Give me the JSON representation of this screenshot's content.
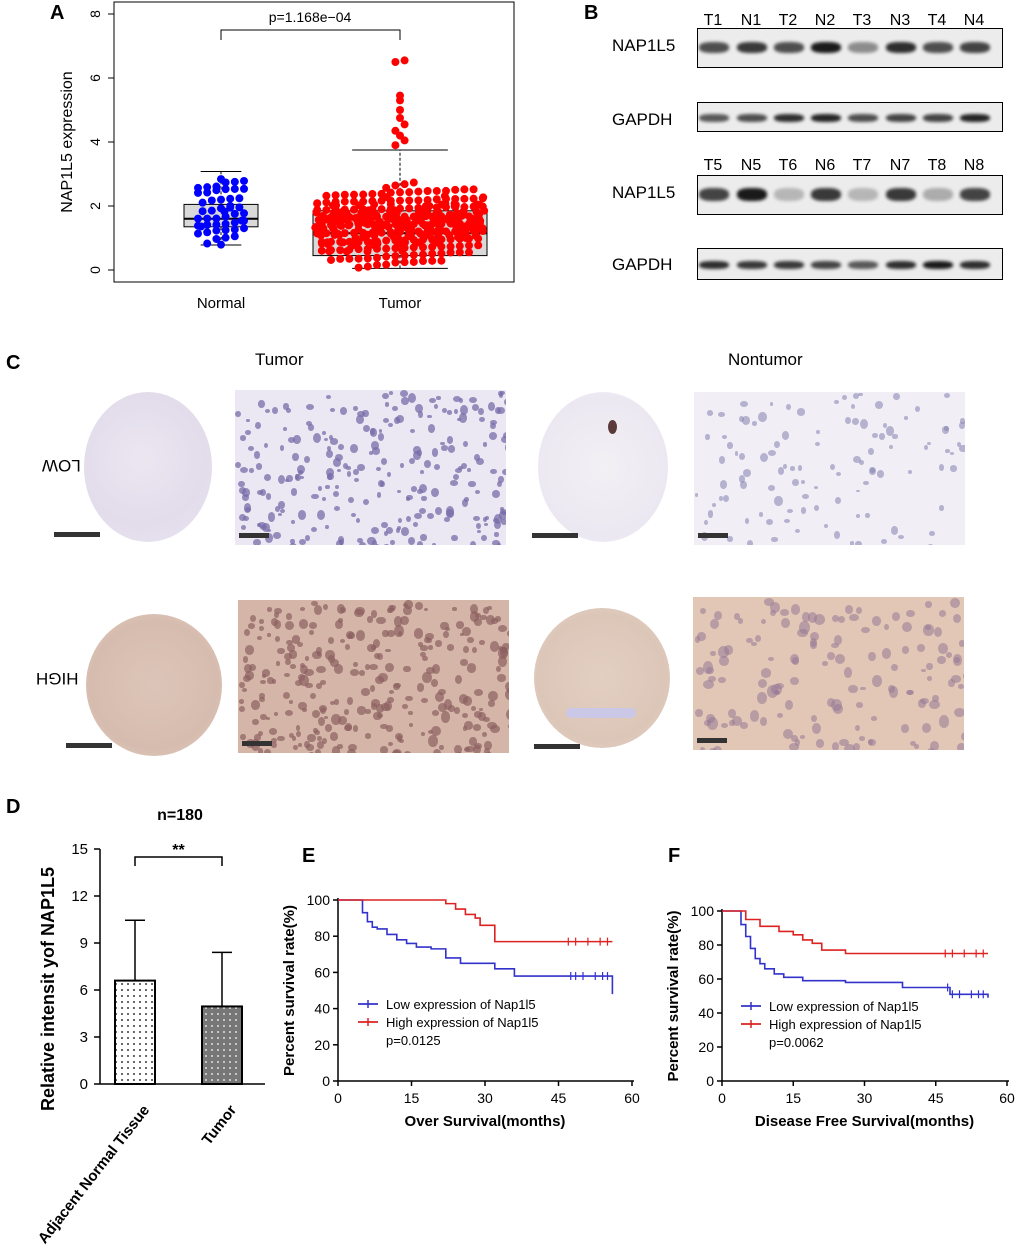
{
  "panels": {
    "a": "A",
    "b": "B",
    "c": "C",
    "d": "D",
    "e": "E",
    "f": "F"
  },
  "chart_data": [
    {
      "id": "A",
      "type": "box_swarm",
      "ylabel": "NAP1L5 expression",
      "ylim": [
        0,
        8
      ],
      "yticks": [
        "0",
        "2",
        "4",
        "6",
        "8"
      ],
      "categories": [
        "Normal",
        "Tumor"
      ],
      "annotation": "p=1.168e−04",
      "series": [
        {
          "name": "Normal",
          "color": "#0000ff",
          "q1": 1.35,
          "median": 1.6,
          "q3": 2.05,
          "whisker_low": 0.78,
          "whisker_high": 3.08,
          "n": 50
        },
        {
          "name": "Tumor",
          "color": "#ff0000",
          "q1": 0.45,
          "median": 1.15,
          "q3": 1.85,
          "whisker_low": 0.05,
          "whisker_high": 3.75,
          "n": 370,
          "outliers": [
            3.9,
            4.05,
            4.2,
            4.35,
            4.55,
            4.75,
            5.0,
            5.3,
            5.45,
            6.5,
            6.55
          ]
        }
      ]
    },
    {
      "id": "D",
      "type": "bar",
      "title": "n=180",
      "ylabel": "Relative intensit yof NAP1L5",
      "ylim": [
        0,
        15
      ],
      "yticks": [
        "0",
        "3",
        "6",
        "9",
        "12",
        "15"
      ],
      "categories": [
        "Adjacent Normal Tissue",
        "Tumor"
      ],
      "values": [
        6.6,
        4.95
      ],
      "errors": [
        3.85,
        3.45
      ],
      "significance": "**"
    },
    {
      "id": "E",
      "type": "line",
      "xlabel": "Over Survival(months)",
      "ylabel": "Percent survival rate(%)",
      "xlim": [
        0,
        60
      ],
      "ylim": [
        0,
        100
      ],
      "xticks": [
        "0",
        "15",
        "30",
        "45",
        "60"
      ],
      "yticks": [
        "0",
        "20",
        "40",
        "60",
        "80",
        "100"
      ],
      "pvalue": "p=0.0125",
      "series": [
        {
          "name": "Low expression of Nap1l5",
          "color": "#3333cc",
          "x": [
            0,
            5,
            6,
            7,
            8,
            10,
            12,
            14,
            16,
            19,
            22,
            25,
            32,
            36,
            56,
            56
          ],
          "y": [
            100,
            93,
            88,
            85,
            84,
            81,
            78,
            76,
            74,
            73,
            68,
            65,
            62,
            58,
            55,
            48
          ]
        },
        {
          "name": "High expression of Nap1l5",
          "color": "#dd2222",
          "x": [
            0,
            22,
            24,
            26,
            28,
            29,
            32,
            56
          ],
          "y": [
            100,
            98,
            95,
            92,
            90,
            86,
            77,
            77
          ]
        }
      ]
    },
    {
      "id": "F",
      "type": "line",
      "xlabel": "Disease Free Survival(months)",
      "ylabel": "Percent survival rate(%)",
      "xlim": [
        0,
        60
      ],
      "ylim": [
        0,
        100
      ],
      "xticks": [
        "0",
        "15",
        "30",
        "45",
        "60"
      ],
      "yticks": [
        "0",
        "20",
        "40",
        "60",
        "80",
        "100"
      ],
      "pvalue": "p=0.0062",
      "series": [
        {
          "name": "Low expression of Nap1l5",
          "color": "#3333cc",
          "x": [
            0,
            4,
            5,
            6,
            7,
            8,
            9,
            11,
            13,
            17,
            26,
            38,
            48,
            56
          ],
          "y": [
            100,
            92,
            85,
            78,
            72,
            69,
            66,
            63,
            61,
            59,
            58,
            55,
            51,
            49
          ]
        },
        {
          "name": "High expression of Nap1l5",
          "color": "#dd2222",
          "x": [
            0,
            5,
            8,
            12,
            15,
            17,
            19,
            21,
            26,
            56
          ],
          "y": [
            100,
            95,
            91,
            88,
            86,
            83,
            81,
            77,
            75,
            75
          ]
        }
      ]
    }
  ],
  "western": {
    "row1_lanes": [
      "T1",
      "N1",
      "T2",
      "N2",
      "T3",
      "N3",
      "T4",
      "N4"
    ],
    "row2_lanes": [
      "T5",
      "N5",
      "T6",
      "N6",
      "T7",
      "N7",
      "T8",
      "N8"
    ],
    "labels": {
      "nap1": "NAP1L5",
      "gapdh1": "GAPDH",
      "nap2": "NAP1L5",
      "gapdh2": "GAPDH"
    }
  },
  "ihc": {
    "col_tumor": "Tumor",
    "col_nontumor": "Nontumor",
    "row_low": "LOW",
    "row_high": "HIGH"
  }
}
